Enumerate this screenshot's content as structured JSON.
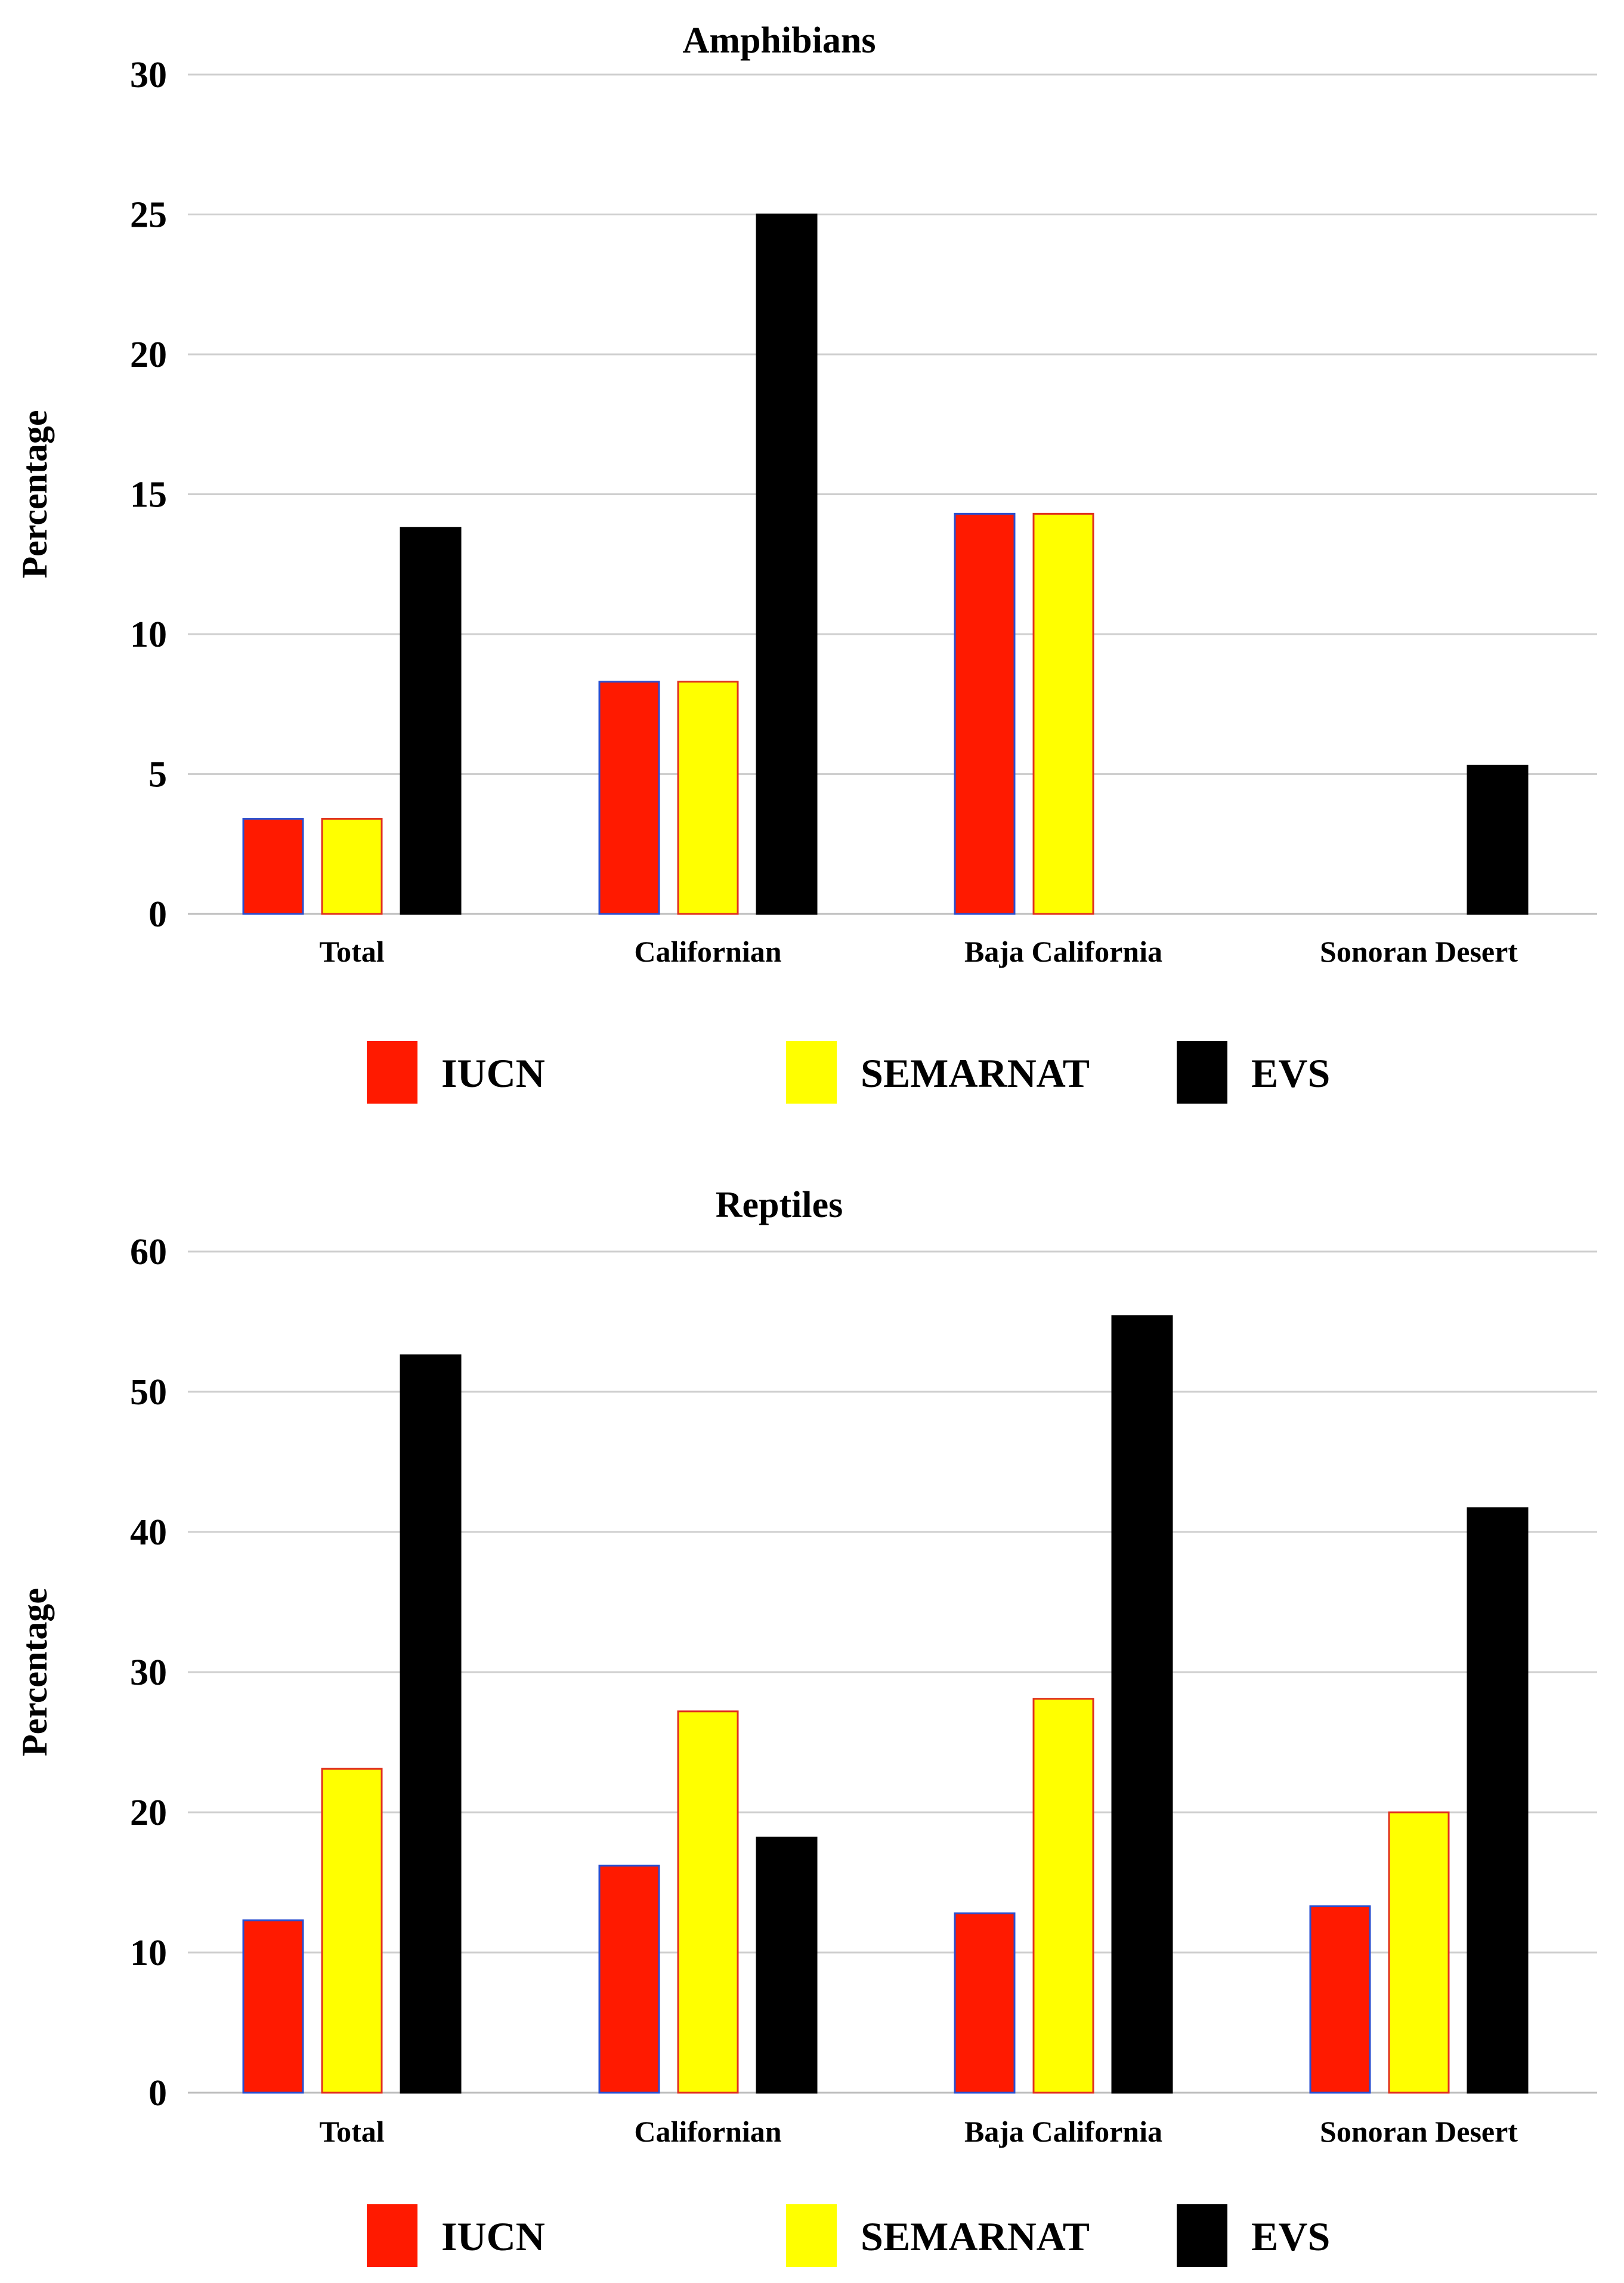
{
  "chart_data": [
    {
      "type": "bar",
      "title": "Amphibians",
      "ylabel": "Percentage",
      "xlabel": "",
      "ylim": [
        0,
        30
      ],
      "yticks": [
        0,
        5,
        10,
        15,
        20,
        25,
        30
      ],
      "categories": [
        "Total",
        "Californian",
        "Baja California",
        "Sonoran Desert"
      ],
      "series": [
        {
          "name": "IUCN",
          "color": "#ff1a00",
          "stroke": "#2a4fd0",
          "values": [
            3.4,
            8.3,
            14.3,
            0
          ]
        },
        {
          "name": "SEMARNAT",
          "color": "#ffff00",
          "stroke": "#e0301e",
          "values": [
            3.4,
            8.3,
            14.3,
            0
          ]
        },
        {
          "name": "EVS",
          "color": "#000000",
          "stroke": "#000000",
          "values": [
            13.8,
            25.0,
            0,
            5.3
          ]
        }
      ],
      "legend": "bottom",
      "grid": true
    },
    {
      "type": "bar",
      "title": "Reptiles",
      "ylabel": "Percentage",
      "xlabel": "",
      "ylim": [
        0,
        60
      ],
      "yticks": [
        0,
        10,
        20,
        30,
        40,
        50,
        60
      ],
      "categories": [
        "Total",
        "Californian",
        "Baja California",
        "Sonoran Desert"
      ],
      "series": [
        {
          "name": "IUCN",
          "color": "#ff1a00",
          "stroke": "#2a4fd0",
          "values": [
            12.3,
            16.2,
            12.8,
            13.3
          ]
        },
        {
          "name": "SEMARNAT",
          "color": "#ffff00",
          "stroke": "#e0301e",
          "values": [
            23.1,
            27.2,
            28.1,
            20.0
          ]
        },
        {
          "name": "EVS",
          "color": "#000000",
          "stroke": "#000000",
          "values": [
            52.6,
            18.2,
            55.4,
            41.7
          ]
        }
      ],
      "legend": "bottom",
      "grid": true
    }
  ]
}
